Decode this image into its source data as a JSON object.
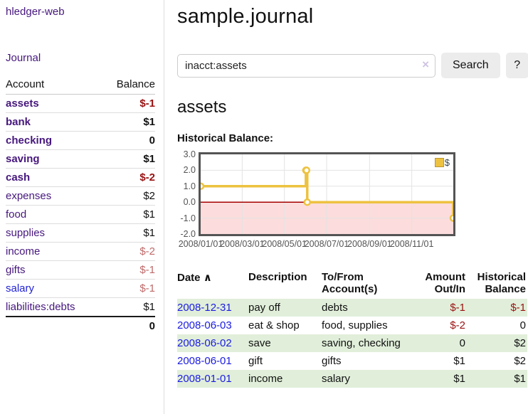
{
  "app": {
    "title": "hledger-web"
  },
  "sidebar": {
    "nav": {
      "journal": "Journal"
    },
    "accounts": {
      "headers": {
        "account": "Account",
        "balance": "Balance"
      },
      "rows": [
        {
          "name": "assets",
          "balance": "$-1"
        },
        {
          "name": "bank",
          "balance": "$1"
        },
        {
          "name": "checking",
          "balance": "0"
        },
        {
          "name": "saving",
          "balance": "$1"
        },
        {
          "name": "cash",
          "balance": "$-2"
        },
        {
          "name": "expenses",
          "balance": "$2"
        },
        {
          "name": "food",
          "balance": "$1"
        },
        {
          "name": "supplies",
          "balance": "$1"
        },
        {
          "name": "income",
          "balance": "$-2"
        },
        {
          "name": "gifts",
          "balance": "$-1"
        },
        {
          "name": "salary",
          "balance": "$-1"
        },
        {
          "name": "liabilities:debts",
          "balance": "$1"
        }
      ],
      "total": "0"
    }
  },
  "main": {
    "title": "sample.journal",
    "search": {
      "value": "inacct:assets",
      "clear_icon": "×",
      "button_label": "Search",
      "help_label": "?"
    },
    "account_heading": "assets",
    "chart_label": "Historical Balance:"
  },
  "chart_data": {
    "type": "line",
    "step": true,
    "title": "Historical Balance:",
    "x_range": [
      "2008-01-01",
      "2008-12-31"
    ],
    "y_ticks": [
      3.0,
      2.0,
      1.0,
      0.0,
      -1.0,
      -2.0
    ],
    "y_tick_labels": [
      "3.0",
      "2.0",
      "1.0",
      "0.0",
      "-1.0",
      "-2.0"
    ],
    "x_ticks": [
      {
        "date": "2008-01-01",
        "label": "2008/01/01"
      },
      {
        "date": "2008-03-01",
        "label": "2008/03/01"
      },
      {
        "date": "2008-05-01",
        "label": "2008/05/01"
      },
      {
        "date": "2008-07-01",
        "label": "2008/07/01"
      },
      {
        "date": "2008-09-01",
        "label": "2008/09/01"
      },
      {
        "date": "2008-11-01",
        "label": "2008/11/01"
      }
    ],
    "series": [
      {
        "name": "$",
        "color": "#EDC240",
        "points": [
          [
            "2008-01-01",
            1
          ],
          [
            "2008-06-01",
            2
          ],
          [
            "2008-06-02",
            2
          ],
          [
            "2008-06-03",
            0
          ],
          [
            "2008-12-31",
            -1
          ]
        ]
      }
    ],
    "legend": {
      "label": "$",
      "swatch_color": "#EDC240",
      "position": "top-right"
    },
    "grid": true,
    "grid_color": "#e3e3e3",
    "zero_line_color": "#a40000",
    "negative_fill": "#fcdcdc",
    "border_color": "#545454"
  },
  "table": {
    "sort_icon": "∧",
    "headers": {
      "date": "Date",
      "description": "Description",
      "accounts": "To/From\nAccount(s)",
      "amount": "Amount\nOut/In",
      "balance": "Historical\nBalance"
    },
    "rows": [
      {
        "date": "2008-12-31",
        "description": "pay off",
        "accounts": "debts",
        "amount": "$-1",
        "balance": "$-1"
      },
      {
        "date": "2008-06-03",
        "description": "eat & shop",
        "accounts": "food, supplies",
        "amount": "$-2",
        "balance": "0"
      },
      {
        "date": "2008-06-02",
        "description": "save",
        "accounts": "saving, checking",
        "amount": "0",
        "balance": "$2"
      },
      {
        "date": "2008-06-01",
        "description": "gift",
        "accounts": "gifts",
        "amount": "$1",
        "balance": "$2"
      },
      {
        "date": "2008-01-01",
        "description": "income",
        "accounts": "salary",
        "amount": "$1",
        "balance": "$1"
      }
    ]
  }
}
